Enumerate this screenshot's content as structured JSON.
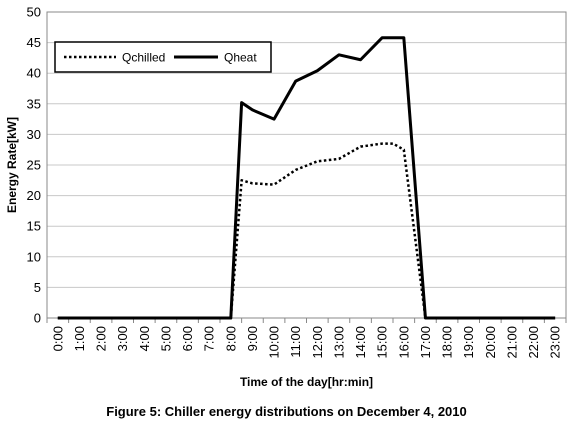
{
  "caption": "Figure 5: Chiller energy distributions on December 4, 2010",
  "chart_data": {
    "type": "line",
    "title": "",
    "xlabel": "Time of the day[hr:min]",
    "ylabel": "Energy Rate[kW]",
    "ylim": [
      0,
      50
    ],
    "yticks": [
      0,
      5,
      10,
      15,
      20,
      25,
      30,
      35,
      40,
      45,
      50
    ],
    "grid": "horizontal",
    "legend_position": "top-left",
    "categories": [
      "0:00",
      "1:00",
      "2:00",
      "3:00",
      "4:00",
      "5:00",
      "6:00",
      "7:00",
      "8:00",
      "9:00",
      "10:00",
      "11:00",
      "12:00",
      "13:00",
      "14:00",
      "15:00",
      "16:00",
      "17:00",
      "18:00",
      "19:00",
      "20:00",
      "21:00",
      "22:00",
      "23:00"
    ],
    "series": [
      {
        "name": "Qchilled",
        "style": "dotted",
        "color": "#000000",
        "x": [
          "0:00",
          "1:00",
          "2:00",
          "3:00",
          "4:00",
          "5:00",
          "6:00",
          "7:00",
          "8:00",
          "8:30",
          "9:00",
          "10:00",
          "11:00",
          "12:00",
          "13:00",
          "14:00",
          "15:00",
          "15:30",
          "16:00",
          "17:00",
          "18:00",
          "19:00",
          "20:00",
          "21:00",
          "22:00",
          "23:00"
        ],
        "values": [
          0,
          0,
          0,
          0,
          0,
          0,
          0,
          0,
          0,
          22.5,
          22,
          21.8,
          24.2,
          25.6,
          26.0,
          28.0,
          28.5,
          28.5,
          27.5,
          0,
          0,
          0,
          0,
          0,
          0,
          0
        ]
      },
      {
        "name": "Qheat",
        "style": "solid",
        "color": "#000000",
        "x": [
          "0:00",
          "1:00",
          "2:00",
          "3:00",
          "4:00",
          "5:00",
          "6:00",
          "7:00",
          "8:00",
          "8:30",
          "9:00",
          "10:00",
          "11:00",
          "12:00",
          "13:00",
          "14:00",
          "15:00",
          "15:30",
          "16:00",
          "17:00",
          "18:00",
          "19:00",
          "20:00",
          "21:00",
          "22:00",
          "23:00"
        ],
        "values": [
          0,
          0,
          0,
          0,
          0,
          0,
          0,
          0,
          0,
          35.2,
          34.0,
          32.5,
          38.7,
          40.4,
          43.0,
          42.2,
          45.8,
          45.8,
          45.8,
          0,
          0,
          0,
          0,
          0,
          0,
          0
        ]
      }
    ]
  }
}
